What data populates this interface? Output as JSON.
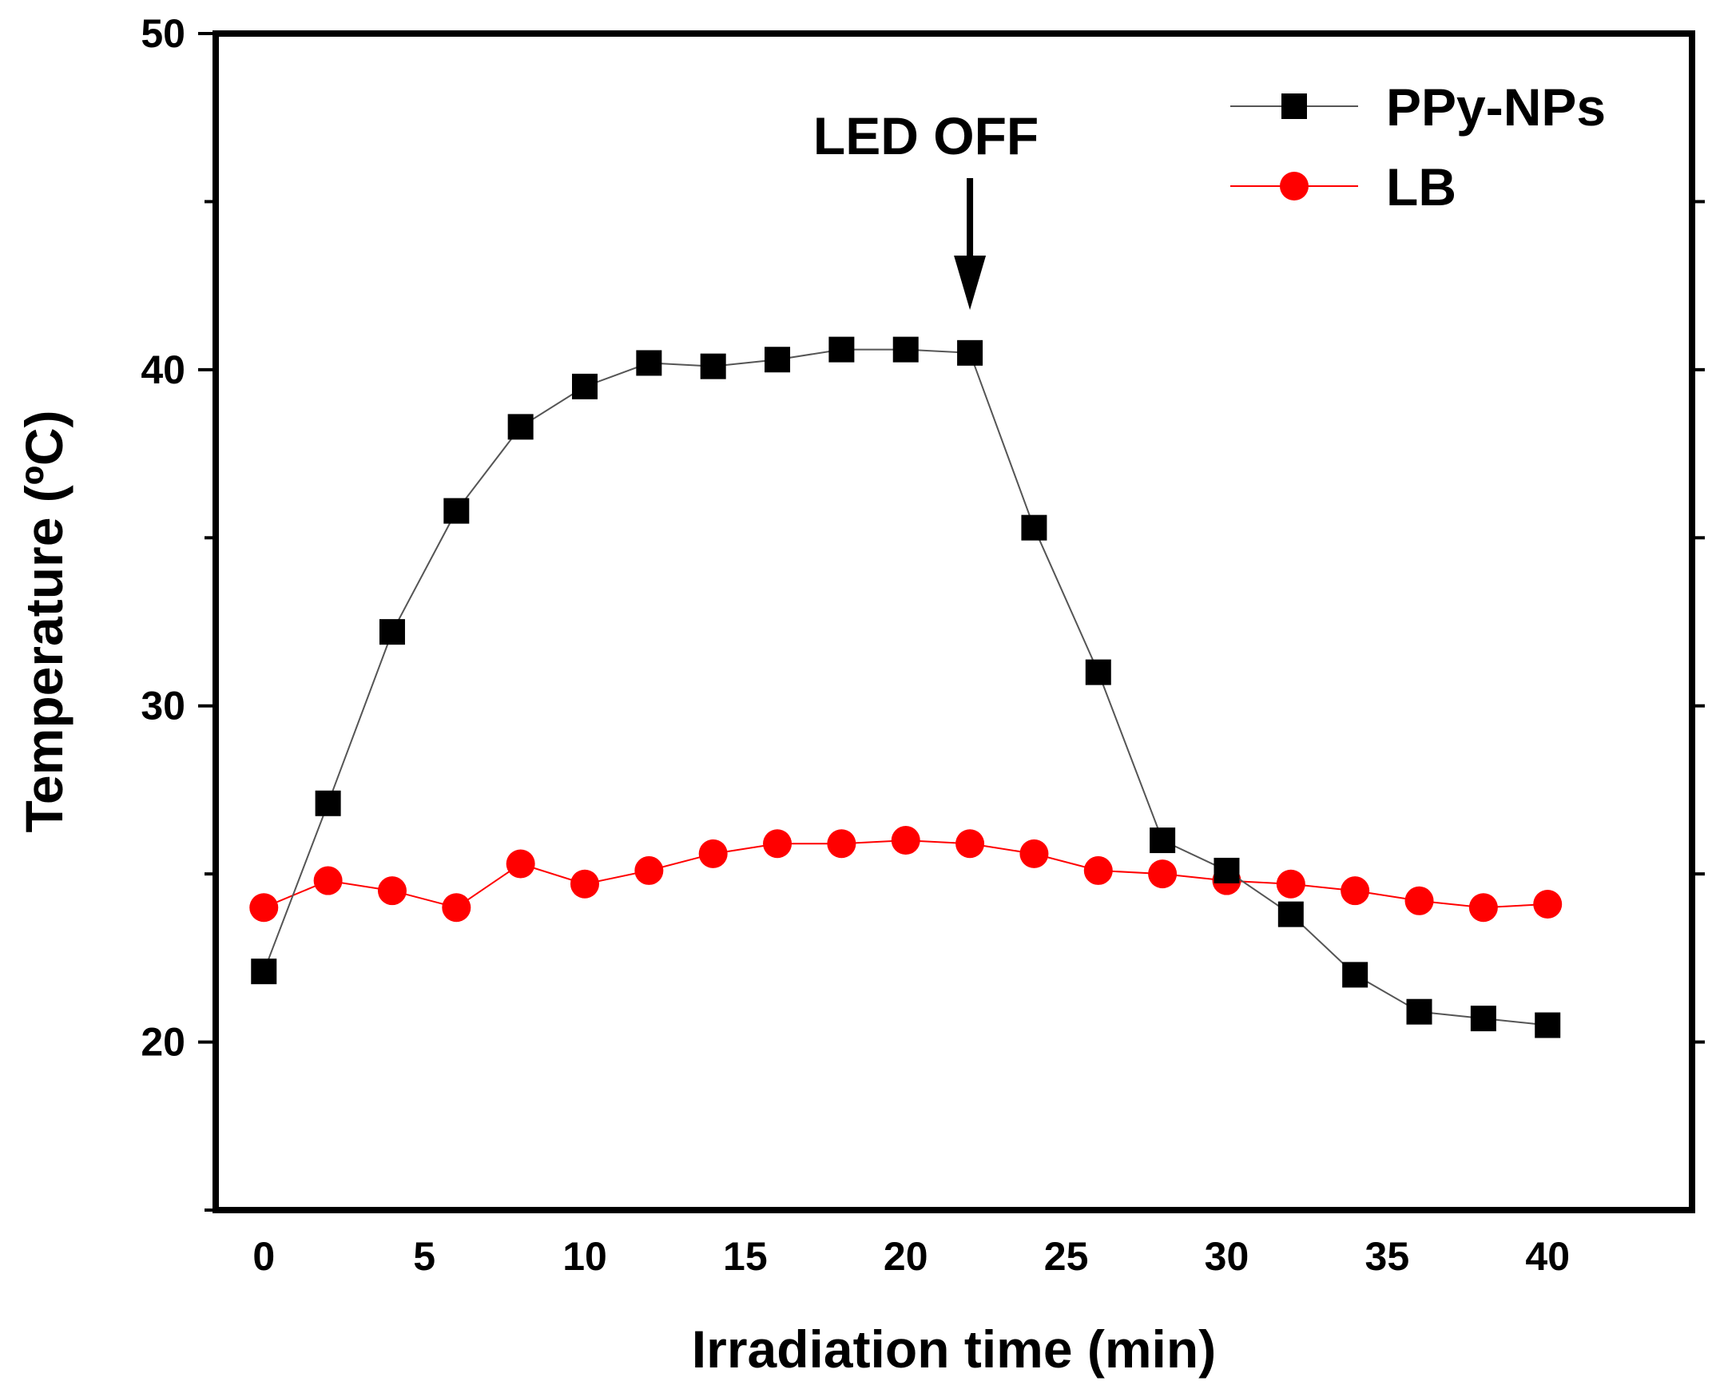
{
  "chart_data": {
    "type": "line",
    "title": "",
    "xlabel": "Irradiation time (min)",
    "ylabel": "Temperature (ºC)",
    "xlim": [
      -1.5,
      44.5
    ],
    "ylim": [
      15,
      50
    ],
    "xticks": [
      0,
      5,
      10,
      15,
      20,
      25,
      30,
      35,
      40
    ],
    "yticks": [
      20,
      30,
      40,
      50
    ],
    "x": [
      0,
      2,
      4,
      6,
      8,
      10,
      12,
      14,
      16,
      18,
      20,
      22,
      24,
      26,
      28,
      30,
      32,
      34,
      36,
      38,
      40
    ],
    "series": [
      {
        "name": "PPy-NPs",
        "marker": "square",
        "color": "#000000",
        "line_color": "#555555",
        "values": [
          22.1,
          27.1,
          32.2,
          35.8,
          38.3,
          39.5,
          40.2,
          40.1,
          40.3,
          40.6,
          40.6,
          40.5,
          35.3,
          31.0,
          26.0,
          25.1,
          23.8,
          22.0,
          20.9,
          20.7,
          20.5
        ]
      },
      {
        "name": "LB",
        "marker": "circle",
        "color": "#ff0000",
        "line_color": "#ff0000",
        "values": [
          24.0,
          24.8,
          24.5,
          24.0,
          25.3,
          24.7,
          25.1,
          25.6,
          25.9,
          25.9,
          26.0,
          25.9,
          25.6,
          25.1,
          25.0,
          24.8,
          24.7,
          24.5,
          24.2,
          24.0,
          24.1
        ]
      }
    ],
    "annotations": [
      {
        "text": "LED OFF",
        "x": 22,
        "arrow": "down"
      }
    ],
    "legend_position": "top-right",
    "grid": false
  }
}
